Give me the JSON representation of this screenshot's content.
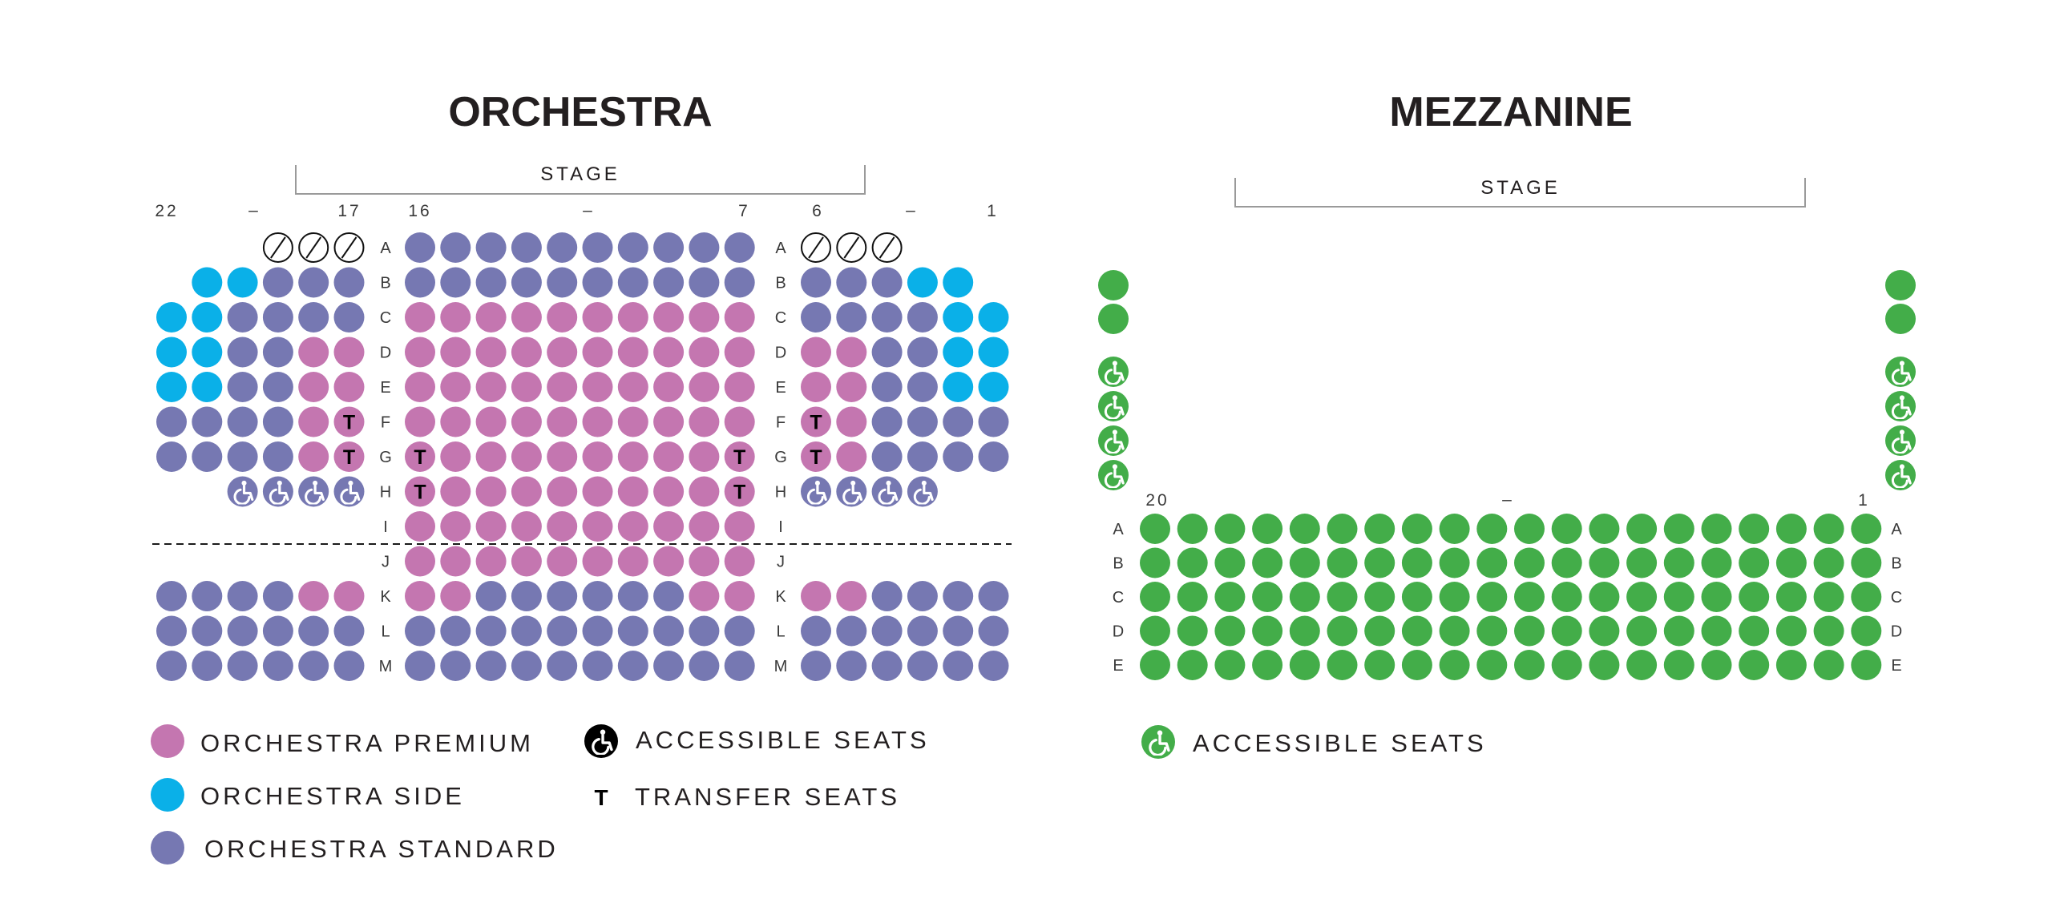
{
  "colors": {
    "premium": "#c476b0",
    "side": "#0ab0e8",
    "standard": "#7678b2",
    "mezzanine": "#43ad49",
    "text": "#231f20",
    "stage_line": "#9a9a9a",
    "divider": "#1a1a1a"
  },
  "orchestra": {
    "title": "ORCHESTRA",
    "stage": "STAGE",
    "seat_numbers": {
      "left": [
        "22",
        "–",
        "17"
      ],
      "center": [
        "16",
        "–",
        "7"
      ],
      "right": [
        "6",
        "–",
        "1"
      ]
    },
    "rows": [
      "A",
      "B",
      "C",
      "D",
      "E",
      "F",
      "G",
      "H",
      "I",
      "J",
      "K",
      "L",
      "M"
    ],
    "seats": {
      "left": [
        [
          "",
          "",
          "",
          "X",
          "X",
          "X"
        ],
        [
          "",
          "S",
          "S",
          "D",
          "D",
          "D"
        ],
        [
          "S",
          "S",
          "D",
          "D",
          "D",
          "D"
        ],
        [
          "S",
          "S",
          "D",
          "D",
          "P",
          "P"
        ],
        [
          "S",
          "S",
          "D",
          "D",
          "P",
          "P"
        ],
        [
          "D",
          "D",
          "D",
          "D",
          "P",
          "PT"
        ],
        [
          "D",
          "D",
          "D",
          "D",
          "P",
          "PT"
        ],
        [
          "",
          "",
          "W",
          "W",
          "W",
          "W"
        ],
        [
          "",
          "",
          "",
          "",
          "",
          ""
        ],
        [
          "",
          "",
          "",
          "",
          "",
          ""
        ],
        [
          "D",
          "D",
          "D",
          "D",
          "P",
          "P"
        ],
        [
          "D",
          "D",
          "D",
          "D",
          "D",
          "D"
        ],
        [
          "D",
          "D",
          "D",
          "D",
          "D",
          "D"
        ]
      ],
      "center": [
        [
          "D",
          "D",
          "D",
          "D",
          "D",
          "D",
          "D",
          "D",
          "D",
          "D"
        ],
        [
          "D",
          "D",
          "D",
          "D",
          "D",
          "D",
          "D",
          "D",
          "D",
          "D"
        ],
        [
          "P",
          "P",
          "P",
          "P",
          "P",
          "P",
          "P",
          "P",
          "P",
          "P"
        ],
        [
          "P",
          "P",
          "P",
          "P",
          "P",
          "P",
          "P",
          "P",
          "P",
          "P"
        ],
        [
          "P",
          "P",
          "P",
          "P",
          "P",
          "P",
          "P",
          "P",
          "P",
          "P"
        ],
        [
          "P",
          "P",
          "P",
          "P",
          "P",
          "P",
          "P",
          "P",
          "P",
          "P"
        ],
        [
          "PT",
          "P",
          "P",
          "P",
          "P",
          "P",
          "P",
          "P",
          "P",
          "PT"
        ],
        [
          "PT",
          "P",
          "P",
          "P",
          "P",
          "P",
          "P",
          "P",
          "P",
          "PT"
        ],
        [
          "P",
          "P",
          "P",
          "P",
          "P",
          "P",
          "P",
          "P",
          "P",
          "P"
        ],
        [
          "P",
          "P",
          "P",
          "P",
          "P",
          "P",
          "P",
          "P",
          "P",
          "P"
        ],
        [
          "P",
          "P",
          "D",
          "D",
          "D",
          "D",
          "D",
          "D",
          "P",
          "P"
        ],
        [
          "D",
          "D",
          "D",
          "D",
          "D",
          "D",
          "D",
          "D",
          "D",
          "D"
        ],
        [
          "D",
          "D",
          "D",
          "D",
          "D",
          "D",
          "D",
          "D",
          "D",
          "D"
        ]
      ],
      "right": [
        [
          "X",
          "X",
          "X",
          "",
          "",
          ""
        ],
        [
          "D",
          "D",
          "D",
          "S",
          "S",
          ""
        ],
        [
          "D",
          "D",
          "D",
          "D",
          "S",
          "S"
        ],
        [
          "P",
          "P",
          "D",
          "D",
          "S",
          "S"
        ],
        [
          "P",
          "P",
          "D",
          "D",
          "S",
          "S"
        ],
        [
          "PT",
          "P",
          "D",
          "D",
          "D",
          "D"
        ],
        [
          "PT",
          "P",
          "D",
          "D",
          "D",
          "D"
        ],
        [
          "W",
          "W",
          "W",
          "W",
          "",
          ""
        ],
        [
          "",
          "",
          "",
          "",
          "",
          ""
        ],
        [
          "",
          "",
          "",
          "",
          "",
          ""
        ],
        [
          "P",
          "P",
          "D",
          "D",
          "D",
          "D"
        ],
        [
          "D",
          "D",
          "D",
          "D",
          "D",
          "D"
        ],
        [
          "D",
          "D",
          "D",
          "D",
          "D",
          "D"
        ]
      ]
    },
    "transfer_mark": "T",
    "legend": {
      "premium": "ORCHESTRA PREMIUM",
      "side": "ORCHESTRA SIDE",
      "standard": "ORCHESTRA STANDARD",
      "accessible": "ACCESSIBLE SEATS",
      "transfer_symbol": "T",
      "transfer": "TRANSFER SEATS"
    }
  },
  "mezzanine": {
    "title": "MEZZANINE",
    "stage": "STAGE",
    "seat_numbers": [
      "20",
      "–",
      "1"
    ],
    "rows": [
      "A",
      "B",
      "C",
      "D",
      "E"
    ],
    "seats_per_row": 20,
    "box_seats": {
      "left": [
        "M",
        "M",
        "W",
        "W",
        "W",
        "W"
      ],
      "right": [
        "M",
        "M",
        "W",
        "W",
        "W",
        "W"
      ]
    },
    "legend": {
      "accessible": "ACCESSIBLE SEATS"
    }
  }
}
